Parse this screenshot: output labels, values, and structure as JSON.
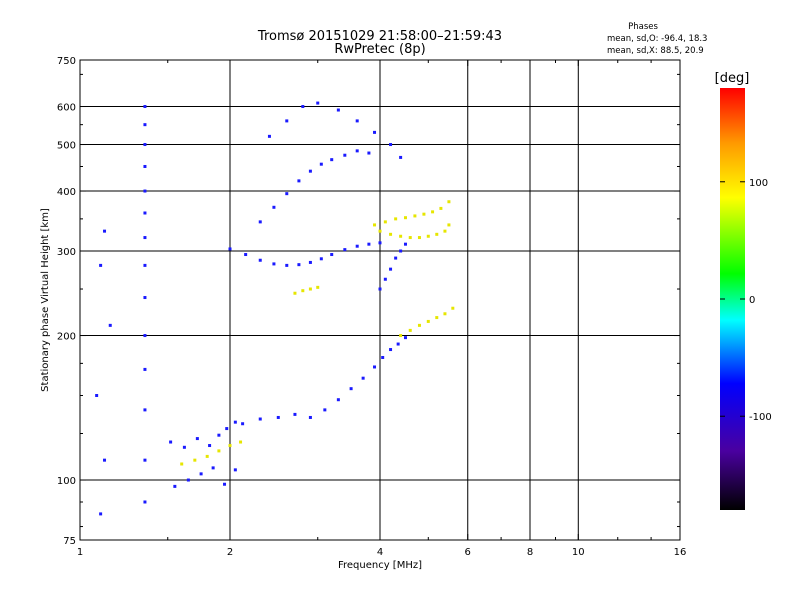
{
  "chart_data": {
    "type": "scatter",
    "title": "Tromsø 20151029 21:58:00–21:59:43",
    "subtitle": "RwPretec (8p)",
    "xlabel": "Frequency [MHz]",
    "ylabel": "Stationary phase Virtual Height [km]",
    "xscale": "log",
    "yscale": "log",
    "xlim": [
      1,
      16
    ],
    "ylim": [
      75,
      750
    ],
    "grid": true,
    "x_major_ticks": [
      1,
      2,
      4,
      6,
      8,
      10,
      16
    ],
    "x_tick_labels": [
      "1",
      "2",
      "4",
      "6",
      "8",
      "10",
      "16"
    ],
    "x_minor_ticks": [
      1.5,
      3,
      5,
      7,
      9,
      12,
      14
    ],
    "y_major_ticks": [
      75,
      100,
      200,
      300,
      400,
      500,
      600,
      750
    ],
    "y_tick_labels": [
      "75",
      "100",
      "200",
      "300",
      "400",
      "500",
      "600",
      "750"
    ],
    "y_minor_ticks": [
      80,
      90,
      125,
      150,
      175,
      250,
      350,
      450,
      550,
      700
    ],
    "phase_header": {
      "title": "Phases",
      "line1": "mean, sd,O: -96.4, 18.3",
      "line2": "mean, sd,X:  88.5, 20.9"
    },
    "colorbar": {
      "label": "[deg]",
      "range": [
        -180,
        180
      ],
      "ticks": [
        -100,
        0,
        100
      ],
      "tick_labels": [
        "-100",
        "0",
        "100"
      ]
    },
    "colors": {
      "o_mode": "#1a1aff",
      "x_mode": "#e6e600"
    },
    "series": [
      {
        "mode": "O",
        "traces": [
          {
            "x": [
              1.52,
              1.62,
              1.72,
              1.82,
              1.9,
              1.97,
              2.05,
              2.12,
              2.3,
              2.5,
              2.7,
              2.9,
              3.1,
              3.3,
              3.5,
              3.7,
              3.9,
              4.05,
              4.2,
              4.35,
              4.5
            ],
            "y": [
              120,
              117,
              122,
              118,
              124,
              128,
              132,
              131,
              134,
              135,
              137,
              135,
              140,
              147,
              155,
              163,
              172,
              180,
              187,
              192,
              198
            ]
          },
          {
            "x": [
              1.55,
              1.65,
              1.75,
              1.85,
              1.95,
              2.05
            ],
            "y": [
              97,
              100,
              103,
              106,
              98,
              105
            ]
          },
          {
            "x": [
              2.0,
              2.15,
              2.3,
              2.45,
              2.6,
              2.75,
              2.9,
              3.05,
              3.2,
              3.4,
              3.6,
              3.8,
              4.0
            ],
            "y": [
              303,
              295,
              287,
              282,
              280,
              281,
              284,
              289,
              295,
              302,
              307,
              310,
              312
            ]
          },
          {
            "x": [
              2.3,
              2.45,
              2.6,
              2.75,
              2.9,
              3.05,
              3.2,
              3.4,
              3.6,
              3.8
            ],
            "y": [
              345,
              370,
              395,
              420,
              440,
              455,
              465,
              475,
              485,
              480
            ]
          },
          {
            "x": [
              2.4,
              2.6,
              2.8,
              3.0,
              3.3,
              3.6,
              3.9,
              4.2,
              4.4
            ],
            "y": [
              520,
              560,
              600,
              610,
              590,
              560,
              530,
              500,
              470
            ]
          },
          {
            "x": [
              4.0,
              4.1,
              4.2,
              4.3,
              4.4,
              4.5
            ],
            "y": [
              250,
              262,
              275,
              290,
              300,
              310
            ]
          },
          {
            "x": [
              1.35,
              1.35,
              1.35,
              1.35,
              1.35,
              1.35,
              1.35,
              1.35,
              1.35,
              1.35,
              1.35,
              1.35,
              1.35,
              1.35
            ],
            "y": [
              90,
              110,
              140,
              170,
              200,
              240,
              280,
              320,
              360,
              400,
              450,
              500,
              550,
              600
            ]
          },
          {
            "x": [
              1.1,
              1.12,
              1.08,
              1.15,
              1.1,
              1.12
            ],
            "y": [
              85,
              110,
              150,
              210,
              280,
              330
            ]
          }
        ]
      },
      {
        "mode": "X",
        "traces": [
          {
            "x": [
              4.0,
              4.2,
              4.4,
              4.6,
              4.8,
              5.0,
              5.2,
              5.4,
              5.5
            ],
            "y": [
              330,
              325,
              322,
              320,
              320,
              322,
              325,
              330,
              340
            ]
          },
          {
            "x": [
              3.9,
              4.1,
              4.3,
              4.5,
              4.7,
              4.9,
              5.1,
              5.3,
              5.5
            ],
            "y": [
              340,
              345,
              350,
              352,
              355,
              358,
              362,
              368,
              380
            ]
          },
          {
            "x": [
              4.4,
              4.6,
              4.8,
              5.0,
              5.2,
              5.4,
              5.6
            ],
            "y": [
              200,
              205,
              210,
              214,
              218,
              222,
              228
            ]
          },
          {
            "x": [
              1.6,
              1.7,
              1.8,
              1.9,
              2.0,
              2.1
            ],
            "y": [
              108,
              110,
              112,
              115,
              118,
              120
            ]
          },
          {
            "x": [
              2.7,
              2.8,
              2.9,
              3.0
            ],
            "y": [
              245,
              248,
              250,
              252
            ]
          }
        ]
      }
    ]
  }
}
